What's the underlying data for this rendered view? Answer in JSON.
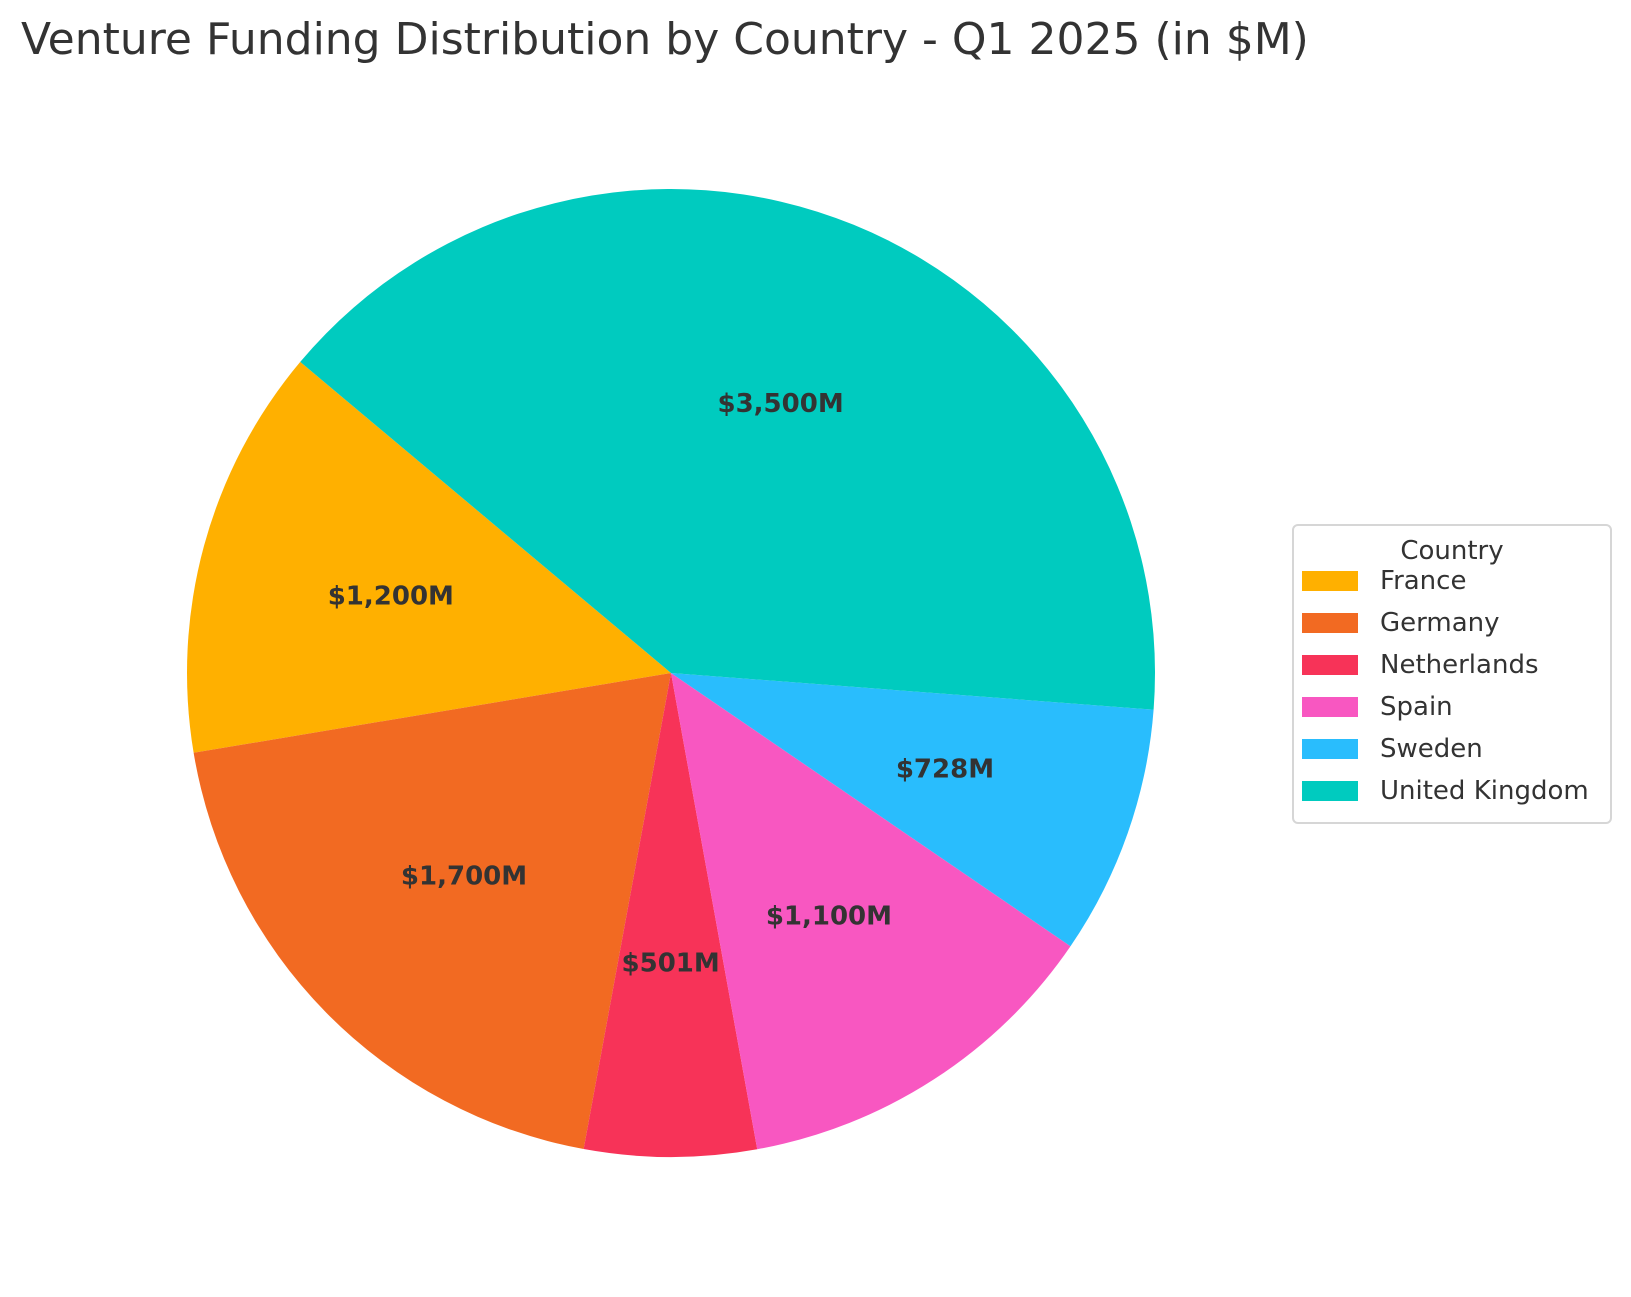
{
  "chart_data": {
    "type": "pie",
    "title": "Venture Funding Distribution by Country - Q1 2025 (in $M)",
    "legend_title": "Country",
    "legend_position": "center-right",
    "categories": [
      "France",
      "Germany",
      "Netherlands",
      "Spain",
      "Sweden",
      "United Kingdom"
    ],
    "values": [
      1200,
      1700,
      501,
      1100,
      728,
      3500
    ],
    "labels": [
      "$1,200M",
      "$1,700M",
      "$501M",
      "$1,100M",
      "$728M",
      "$3,500M"
    ],
    "colors": [
      "#FFB000",
      "#F26A22",
      "#F73358",
      "#F857C1",
      "#29BDFD",
      "#00CBBF"
    ],
    "start_angle_deg": 140,
    "direction": "counterclockwise"
  }
}
